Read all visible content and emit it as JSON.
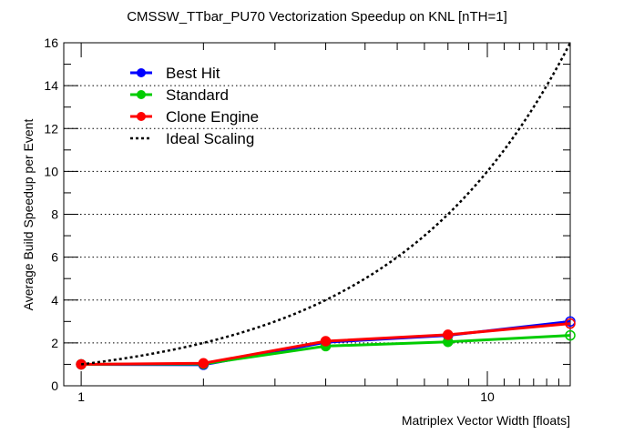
{
  "chart_data": {
    "type": "line",
    "title": "CMSSW_TTbar_PU70 Vectorization Speedup on KNL [nTH=1]",
    "xlabel": "Matriplex Vector Width [floats]",
    "ylabel": "Average Build Speedup per Event",
    "xscale": "log",
    "xlim": [
      0.906,
      16
    ],
    "ylim": [
      0,
      16
    ],
    "x_tick_labels": [
      "1",
      "10"
    ],
    "y_tick_labels": [
      "0",
      "2",
      "4",
      "6",
      "8",
      "10",
      "12",
      "14",
      "16"
    ],
    "grid": "horizontal dotted at major y ticks",
    "legend_position": "top-left",
    "x": [
      1,
      2,
      4,
      8,
      16
    ],
    "series": [
      {
        "name": "Best Hit",
        "color": "#0000ff",
        "values": [
          1.0,
          0.98,
          2.03,
          2.35,
          3.0
        ]
      },
      {
        "name": "Standard",
        "color": "#00cc00",
        "values": [
          1.0,
          1.02,
          1.85,
          2.05,
          2.35
        ]
      },
      {
        "name": "Clone Engine",
        "color": "#ff0000",
        "values": [
          1.0,
          1.05,
          2.08,
          2.38,
          2.9
        ]
      },
      {
        "name": "Ideal Scaling",
        "color": "#000000",
        "style": "dashed",
        "values": [
          1,
          2,
          4,
          8,
          16
        ]
      }
    ]
  }
}
